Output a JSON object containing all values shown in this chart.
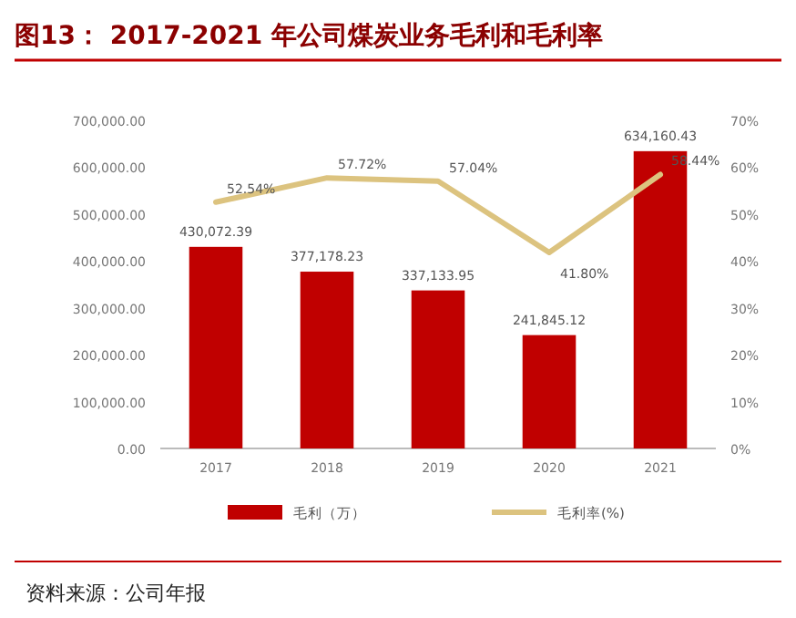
{
  "chart_data": {
    "type": "bar",
    "title": "图13：  2017-2021 年公司煤炭业务毛利和毛利率",
    "annotations": [
      "资料来源：公司年报"
    ],
    "categories": [
      "2017",
      "2018",
      "2019",
      "2020",
      "2021"
    ],
    "series": [
      {
        "name": "毛利（万）",
        "type": "bar",
        "color": "#c00000",
        "values": [
          430072.39,
          377178.23,
          337133.95,
          241845.12,
          634160.43
        ],
        "value_labels": [
          "430,072.39",
          "377,178.23",
          "337,133.95",
          "241,845.12",
          "634,160.43"
        ]
      },
      {
        "name": "毛利率(%)",
        "type": "line",
        "axis": "y2",
        "color": "#dcc37f",
        "values": [
          52.54,
          57.72,
          57.04,
          41.8,
          58.44
        ],
        "value_labels": [
          "52.54%",
          "57.72%",
          "57.04%",
          "41.80%",
          "58.44%"
        ]
      }
    ],
    "ylim": [
      0,
      700000
    ],
    "yticks": [
      {
        "value": 0,
        "label": "0.00"
      },
      {
        "value": 100000,
        "label": "100,000.00"
      },
      {
        "value": 200000,
        "label": "200,000.00"
      },
      {
        "value": 300000,
        "label": "300,000.00"
      },
      {
        "value": 400000,
        "label": "400,000.00"
      },
      {
        "value": 500000,
        "label": "500,000.00"
      },
      {
        "value": 600000,
        "label": "600,000.00"
      },
      {
        "value": 700000,
        "label": "700,000.00"
      }
    ],
    "y2lim": [
      0,
      70
    ],
    "y2ticks": [
      {
        "value": 0,
        "label": "0%"
      },
      {
        "value": 10,
        "label": "10%"
      },
      {
        "value": 20,
        "label": "20%"
      },
      {
        "value": 30,
        "label": "30%"
      },
      {
        "value": 40,
        "label": "40%"
      },
      {
        "value": 50,
        "label": "50%"
      },
      {
        "value": 60,
        "label": "60%"
      },
      {
        "value": 70,
        "label": "70%"
      }
    ],
    "legend": "bottom"
  }
}
